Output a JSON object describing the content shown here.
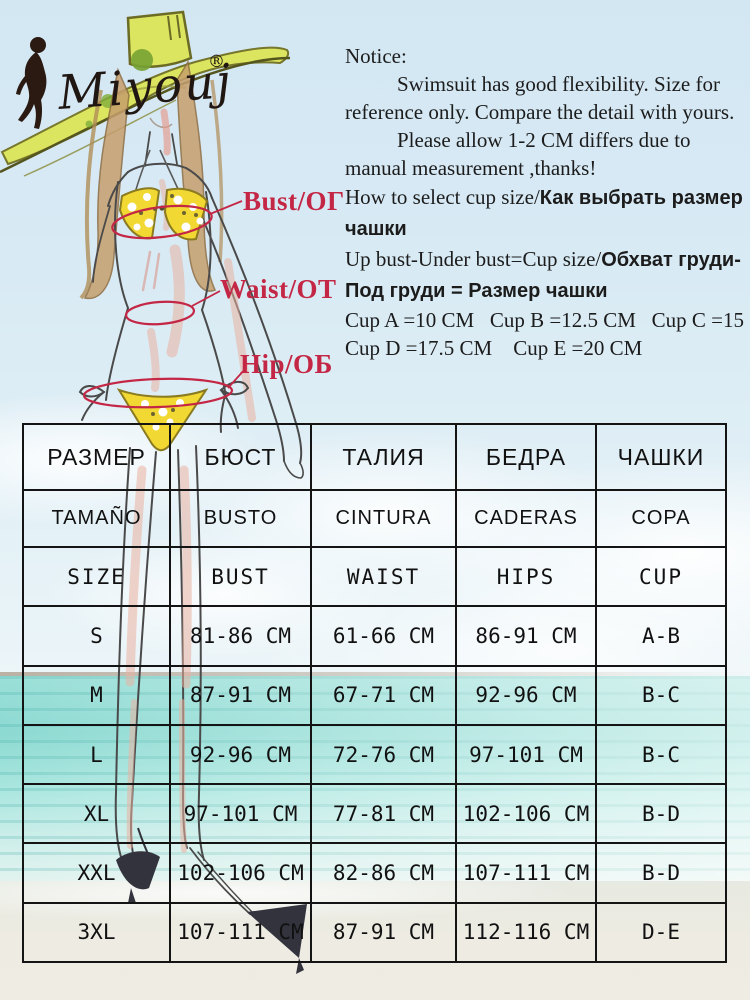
{
  "brand": {
    "name": "Miyouj",
    "registered": "®"
  },
  "notice": {
    "title": "Notice:",
    "para1": "Swimsuit has good flexibility. Size for reference only. Compare the detail with yours.",
    "para2": "Please allow 1-2 CM differs due to manual measurement ,thanks!",
    "cup_select_en": "How to select cup size/",
    "cup_select_ru": "Как выбрать размер чашки",
    "cup_formula_en": "Up bust-Under bust=Cup size/",
    "cup_formula_ru": "Обхват груди-Под груди = Размер чашки",
    "cup_line1": "Cup A =10 CM   Cup B =12.5 CM   Cup C =15 CM",
    "cup_line2": "Cup D =17.5 CM    Cup E =20 CM"
  },
  "figure_labels": {
    "bust": "Bust/ОГ",
    "waist": "Waist/ОТ",
    "hip": "Hip/ОБ"
  },
  "size_table": {
    "rows": [
      {
        "style": "ru",
        "cells": [
          "РАЗМЕР",
          "БЮСТ",
          "ТАЛИЯ",
          "БЕДРА",
          "ЧАШКИ"
        ]
      },
      {
        "style": "es",
        "cells": [
          "TAMAÑO",
          "BUSTO",
          "CINTURA",
          "CADERAS",
          "COPA"
        ]
      },
      {
        "style": "en",
        "cells": [
          "SIZE",
          "BUST",
          "WAIST",
          "HIPS",
          "CUP"
        ]
      },
      {
        "style": "data",
        "cells": [
          "S",
          "81-86 CM",
          "61-66 CM",
          "86-91 CM",
          "A-B"
        ]
      },
      {
        "style": "data",
        "cells": [
          "M",
          "87-91 CM",
          "67-71 CM",
          "92-96 CM",
          "B-C"
        ]
      },
      {
        "style": "data",
        "cells": [
          "L",
          "92-96 CM",
          "72-76 CM",
          "97-101 CM",
          "B-C"
        ]
      },
      {
        "style": "data",
        "cells": [
          "XL",
          "97-101 CM",
          "77-81 CM",
          "102-106 CM",
          "B-D"
        ]
      },
      {
        "style": "data",
        "cells": [
          "XXL",
          "102-106 CM",
          "82-86 CM",
          "107-111 CM",
          "B-D"
        ]
      },
      {
        "style": "data",
        "cells": [
          "3XL",
          "107-111 CM",
          "87-91 CM",
          "112-116 CM",
          "D-E"
        ]
      }
    ]
  },
  "colors": {
    "accent_red": "#c42745",
    "hat_green": "#dce55f",
    "bikini_yellow": "#f2d832",
    "sea_turquoise": "#8cdad2",
    "sand": "#efece3",
    "sky": "#d3e7f3",
    "table_border": "#141414"
  }
}
